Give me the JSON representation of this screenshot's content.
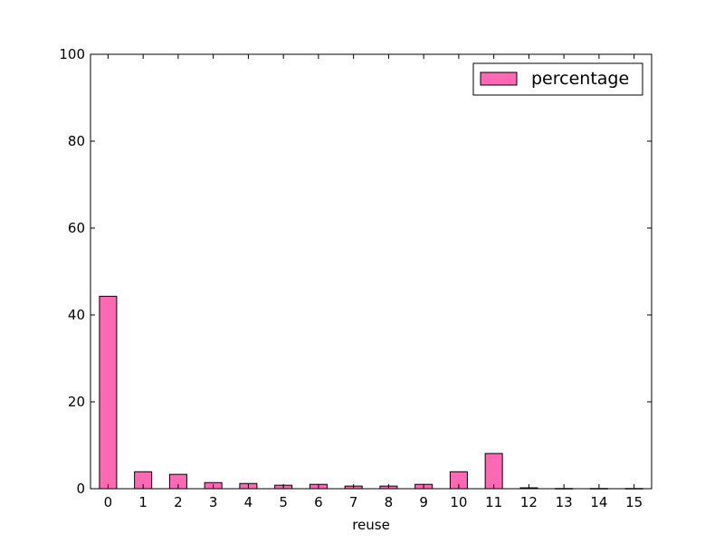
{
  "chart_data": {
    "type": "bar",
    "xlabel": "reuse",
    "ylabel": "",
    "ylim": [
      0,
      100
    ],
    "yticks": [
      0,
      20,
      40,
      60,
      80,
      100
    ],
    "categories": [
      "0",
      "1",
      "2",
      "3",
      "4",
      "5",
      "6",
      "7",
      "8",
      "9",
      "10",
      "11",
      "12",
      "13",
      "14",
      "15"
    ],
    "series": [
      {
        "name": "percentage",
        "color": "#ff69b4",
        "values": [
          44.3,
          3.9,
          3.3,
          1.4,
          1.2,
          0.8,
          1.0,
          0.6,
          0.6,
          1.0,
          3.9,
          8.1,
          0.2,
          0.05,
          0.05,
          0.05
        ]
      }
    ],
    "legend_position": "top-right",
    "grid": false
  }
}
